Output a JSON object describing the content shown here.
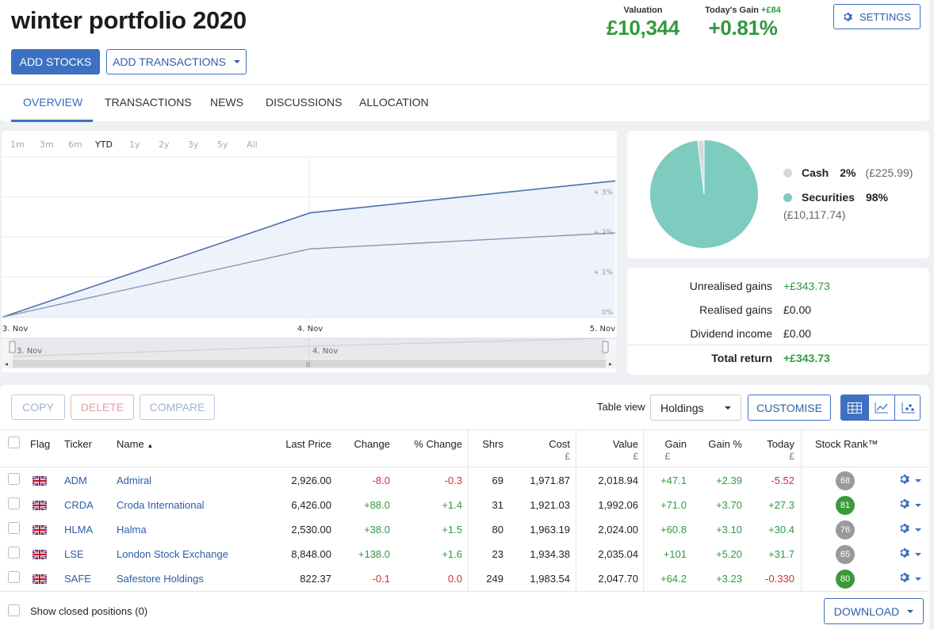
{
  "portfolio": {
    "title": "winter portfolio 2020",
    "add_stocks": "ADD STOCKS",
    "add_transactions": "ADD TRANSACTIONS",
    "settings": "SETTINGS",
    "valuation_label": "Valuation",
    "valuation_value": "£10,344",
    "gain_label": "Today's Gain",
    "gain_amount": "+£84",
    "gain_pct": "+0.81%"
  },
  "tabs": [
    "OVERVIEW",
    "TRANSACTIONS",
    "NEWS",
    "DISCUSSIONS",
    "ALLOCATION"
  ],
  "chart_ranges": [
    "1m",
    "3m",
    "6m",
    "YTD",
    "1y",
    "2y",
    "3y",
    "5y",
    "All"
  ],
  "chart_data": {
    "type": "line",
    "x": [
      "3. Nov",
      "4. Nov",
      "5. Nov"
    ],
    "series": [
      {
        "values": [
          0,
          2.6,
          3.4
        ],
        "color": "#4a72b0"
      },
      {
        "values": [
          0,
          1.7,
          2.1
        ],
        "color": "#8798b5"
      }
    ],
    "y_ticks": [
      "0%",
      "+ 1%",
      "+ 2%",
      "+ 3%"
    ],
    "ylim": [
      0,
      4
    ],
    "navigator_labels": [
      "3. Nov",
      "4. Nov"
    ],
    "grid": true
  },
  "allocation": {
    "cash_label": "Cash",
    "cash_pct": "2%",
    "cash_amount": "(£225.99)",
    "securities_label": "Securities",
    "securities_pct": "98%",
    "securities_amount": "(£10,117.74)",
    "cash_fraction": 0.02,
    "cash_color": "#d6d8dc",
    "securities_color": "#7ecbc0"
  },
  "returns": [
    {
      "label": "Unrealised gains",
      "value": "+£343.73",
      "positive": true
    },
    {
      "label": "Realised gains",
      "value": "£0.00",
      "positive": false
    },
    {
      "label": "Dividend income",
      "value": "£0.00",
      "positive": false
    },
    {
      "label": "Total return",
      "value": "+£343.73",
      "positive": true,
      "bold": true
    }
  ],
  "toolbar": {
    "copy": "COPY",
    "delete": "DELETE",
    "compare": "COMPARE",
    "table_view_label": "Table view",
    "table_view_value": "Holdings",
    "customise": "CUSTOMISE",
    "show_closed": "Show closed positions (0)",
    "download": "DOWNLOAD"
  },
  "columns": {
    "flag": "Flag",
    "ticker": "Ticker",
    "name": "Name",
    "last_price": "Last Price",
    "change": "Change",
    "pct_change": "% Change",
    "shrs": "Shrs",
    "cost": "Cost",
    "value": "Value",
    "gain": "Gain",
    "gain_pct": "Gain %",
    "today": "Today",
    "stock_rank": "Stock Rank™",
    "currency": "£"
  },
  "holdings": [
    {
      "ticker": "ADM",
      "name": "Admiral",
      "last_price": "2,926.00",
      "change": "-8.0",
      "pct_change": "-0.3",
      "shrs": "69",
      "cost": "1,971.87",
      "value": "2,018.94",
      "gain": "+47.1",
      "gain_pct": "+2.39",
      "today": "-5.52",
      "rank": "68",
      "rank_color": "#9a9a9a"
    },
    {
      "ticker": "CRDA",
      "name": "Croda International",
      "last_price": "6,426.00",
      "change": "+88.0",
      "pct_change": "+1.4",
      "shrs": "31",
      "cost": "1,921.03",
      "value": "1,992.06",
      "gain": "+71.0",
      "gain_pct": "+3.70",
      "today": "+27.3",
      "rank": "81",
      "rank_color": "#3a9a3a"
    },
    {
      "ticker": "HLMA",
      "name": "Halma",
      "last_price": "2,530.00",
      "change": "+38.0",
      "pct_change": "+1.5",
      "shrs": "80",
      "cost": "1,963.19",
      "value": "2,024.00",
      "gain": "+60.8",
      "gain_pct": "+3.10",
      "today": "+30.4",
      "rank": "76",
      "rank_color": "#9a9a9a"
    },
    {
      "ticker": "LSE",
      "name": "London Stock Exchange",
      "last_price": "8,848.00",
      "change": "+138.0",
      "pct_change": "+1.6",
      "shrs": "23",
      "cost": "1,934.38",
      "value": "2,035.04",
      "gain": "+101",
      "gain_pct": "+5.20",
      "today": "+31.7",
      "rank": "65",
      "rank_color": "#9a9a9a"
    },
    {
      "ticker": "SAFE",
      "name": "Safestore Holdings",
      "last_price": "822.37",
      "change": "-0.1",
      "pct_change": "0.0",
      "shrs": "249",
      "cost": "1,983.54",
      "value": "2,047.70",
      "gain": "+64.2",
      "gain_pct": "+3.23",
      "today": "-0.330",
      "rank": "80",
      "rank_color": "#3a9a3a"
    }
  ]
}
